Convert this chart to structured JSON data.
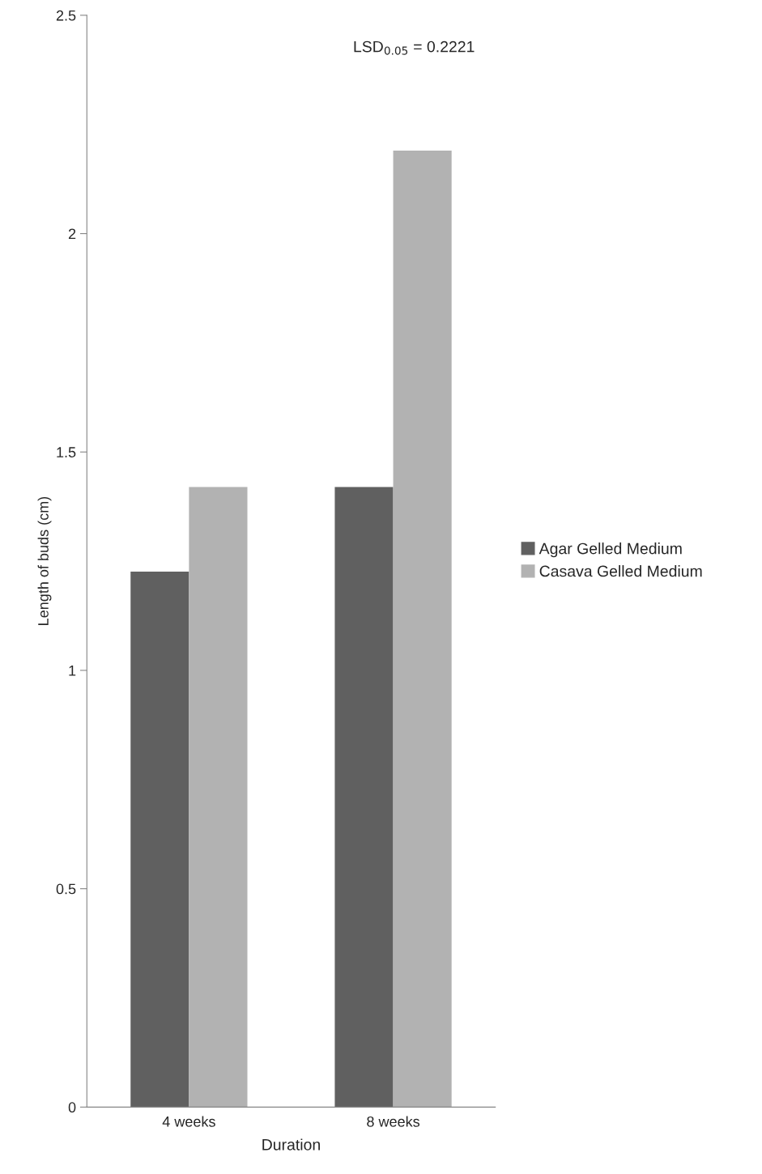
{
  "chart_data": {
    "type": "bar",
    "categories": [
      "4 weeks",
      "8 weeks"
    ],
    "series": [
      {
        "name": "Agar Gelled Medium",
        "color": "#606060",
        "values": [
          1.226,
          1.42
        ]
      },
      {
        "name": "Casava Gelled Medium",
        "color": "#b2b2b2",
        "values": [
          1.42,
          2.19
        ]
      }
    ],
    "xlabel": "Duration",
    "ylabel": "Length of buds (cm)",
    "ylim": [
      0,
      2.5
    ],
    "yticks": [
      0,
      0.5,
      1,
      1.5,
      2,
      2.5
    ],
    "annotations": [
      "LSD$_{0.05}$ = 0.2221"
    ],
    "legend": "right",
    "grid": false
  }
}
